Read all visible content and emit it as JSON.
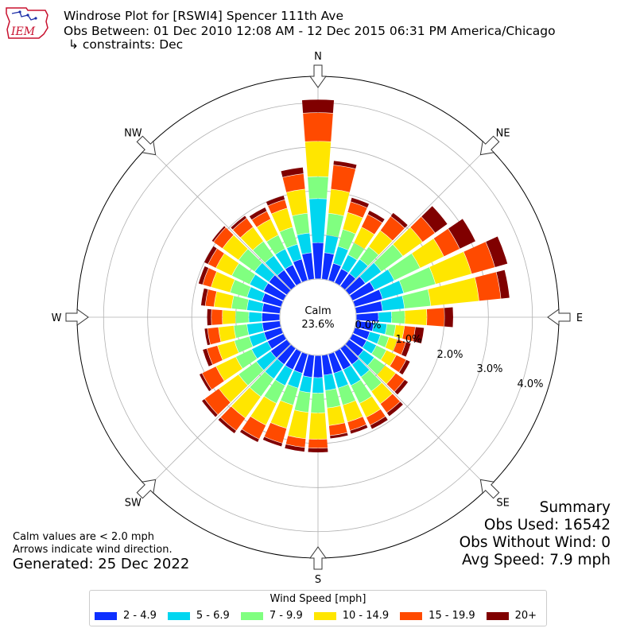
{
  "header": {
    "title": "Windrose Plot for [RSWI4] Spencer 111th Ave",
    "obs_between": "Obs Between: 01 Dec 2010 12:08 AM - 12 Dec 2015 06:31 PM America/Chicago",
    "constraints": "↳ constraints: Dec",
    "logo_text": "IEM"
  },
  "notes": {
    "calm_note": "Calm values are < 2.0 mph",
    "arrow_note": "Arrows indicate wind direction.",
    "generated": "Generated: 25 Dec 2022"
  },
  "summary": {
    "title": "Summary",
    "obs_used": "Obs Used: 16542",
    "obs_without_wind": "Obs Without Wind: 0",
    "avg_speed": "Avg Speed: 7.9 mph"
  },
  "legend": {
    "title": "Wind Speed [mph]",
    "items": [
      {
        "label": "2 - 4.9",
        "color": "#0d2fff"
      },
      {
        "label": "5 - 6.9",
        "color": "#00d6f0"
      },
      {
        "label": "7 - 9.9",
        "color": "#80ff80"
      },
      {
        "label": "10 - 14.9",
        "color": "#ffe600"
      },
      {
        "label": "15 - 19.9",
        "color": "#ff4a00"
      },
      {
        "label": "20+",
        "color": "#800000"
      }
    ]
  },
  "chart_data": {
    "type": "windrose",
    "calm_label": "Calm",
    "calm_value": "23.6%",
    "calm_percent": 23.6,
    "radial_ticks": [
      "0.0%",
      "1.0%",
      "2.0%",
      "3.0%",
      "4.0%"
    ],
    "radial_tick_values": [
      0,
      1,
      2,
      3,
      4
    ],
    "rmax": 4.6,
    "direction_labels": [
      "N",
      "NE",
      "E",
      "SE",
      "S",
      "SW",
      "W",
      "NW"
    ],
    "bin_colors": [
      "#0d2fff",
      "#00d6f0",
      "#80ff80",
      "#ffe600",
      "#ff4a00",
      "#800000"
    ],
    "sectors_deg": [
      0,
      10,
      20,
      30,
      40,
      50,
      60,
      70,
      80,
      90,
      100,
      110,
      120,
      130,
      140,
      150,
      160,
      170,
      180,
      190,
      200,
      210,
      220,
      230,
      240,
      250,
      260,
      270,
      280,
      290,
      300,
      310,
      320,
      330,
      340,
      350
    ],
    "cumulative_percent": [
      [
        0.82,
        1.82,
        2.32,
        3.12,
        3.77,
        4.07
      ],
      [
        0.6,
        1.0,
        1.5,
        2.05,
        2.6,
        2.7
      ],
      [
        0.4,
        0.8,
        1.2,
        1.6,
        1.85,
        1.95
      ],
      [
        0.35,
        0.7,
        1.0,
        1.4,
        1.72,
        1.82
      ],
      [
        0.35,
        0.75,
        1.1,
        1.55,
        1.95,
        2.05
      ],
      [
        0.45,
        0.9,
        1.5,
        2.05,
        2.4,
        2.75
      ],
      [
        0.55,
        1.05,
        1.7,
        2.3,
        2.7,
        3.1
      ],
      [
        0.65,
        1.15,
        1.9,
        2.75,
        3.3,
        3.6
      ],
      [
        0.6,
        1.1,
        1.7,
        2.8,
        3.3,
        3.5
      ],
      [
        0.5,
        0.8,
        1.1,
        1.6,
        2.0,
        2.2
      ],
      [
        0.4,
        0.7,
        0.9,
        1.1,
        1.35,
        1.55
      ],
      [
        0.35,
        0.6,
        0.8,
        1.0,
        1.2,
        1.32
      ],
      [
        0.35,
        0.6,
        0.85,
        1.1,
        1.35,
        1.45
      ],
      [
        0.4,
        0.7,
        1.0,
        1.3,
        1.55,
        1.65
      ],
      [
        0.45,
        0.8,
        1.2,
        1.55,
        1.8,
        1.9
      ],
      [
        0.45,
        0.85,
        1.3,
        1.65,
        1.85,
        1.95
      ],
      [
        0.45,
        0.8,
        1.2,
        1.6,
        1.8,
        1.88
      ],
      [
        0.45,
        0.8,
        1.2,
        1.6,
        1.83,
        1.9
      ],
      [
        0.5,
        0.85,
        1.3,
        1.9,
        2.1,
        2.2
      ],
      [
        0.5,
        0.85,
        1.3,
        1.9,
        2.1,
        2.2
      ],
      [
        0.45,
        0.8,
        1.2,
        1.75,
        2.1,
        2.18
      ],
      [
        0.45,
        0.85,
        1.3,
        1.85,
        2.2,
        2.28
      ],
      [
        0.45,
        0.85,
        1.35,
        1.95,
        2.3,
        2.38
      ],
      [
        0.45,
        0.85,
        1.35,
        1.9,
        2.3,
        2.38
      ],
      [
        0.4,
        0.8,
        1.2,
        1.7,
        2.05,
        2.12
      ],
      [
        0.4,
        0.75,
        1.1,
        1.5,
        1.75,
        1.85
      ],
      [
        0.4,
        0.75,
        1.05,
        1.4,
        1.65,
        1.72
      ],
      [
        0.4,
        0.7,
        1.0,
        1.3,
        1.55,
        1.65
      ],
      [
        0.4,
        0.75,
        1.1,
        1.5,
        1.7,
        1.8
      ],
      [
        0.45,
        0.8,
        1.2,
        1.65,
        1.85,
        1.95
      ],
      [
        0.5,
        0.85,
        1.3,
        1.7,
        1.9,
        2.0
      ],
      [
        0.5,
        0.9,
        1.35,
        1.8,
        2.05,
        2.1
      ],
      [
        0.45,
        0.85,
        1.25,
        1.65,
        1.9,
        1.97
      ],
      [
        0.45,
        0.85,
        1.2,
        1.6,
        1.8,
        1.9
      ],
      [
        0.5,
        0.85,
        1.25,
        1.7,
        1.9,
        2.0
      ],
      [
        0.6,
        1.05,
        1.5,
        2.05,
        2.4,
        2.55
      ]
    ]
  }
}
